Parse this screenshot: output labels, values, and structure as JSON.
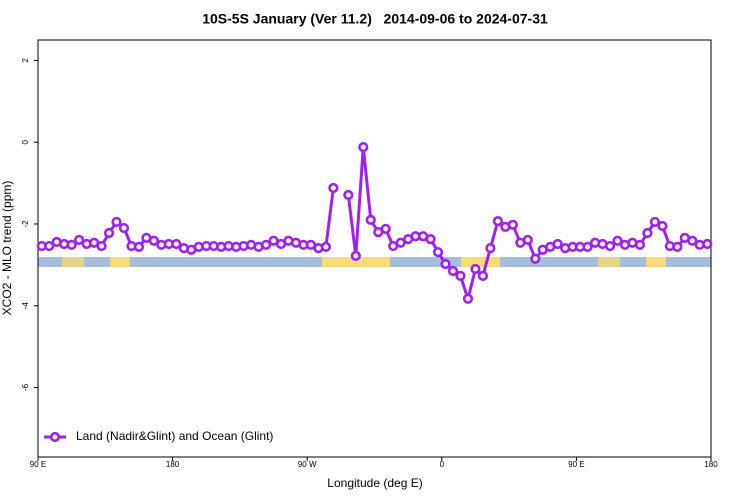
{
  "chart_data": {
    "type": "line",
    "title": "10S-5S January (Ver 11.2)   2014-09-06 to 2024-07-31",
    "x_label": "Longitude (deg E)",
    "y_label": "XCO2 - MLO trend (ppm)",
    "xlim": [
      90,
      540
    ],
    "ylim": [
      -7.7,
      2.5
    ],
    "xticks": [
      {
        "value": 90,
        "label": "90 E"
      },
      180,
      {
        "value": 270,
        "label": "90 W"
      },
      {
        "value": 360,
        "label": "0"
      },
      {
        "value": 450,
        "label": "90 E"
      },
      {
        "value": 540,
        "label": "180"
      }
    ],
    "yticks": [
      2,
      0,
      -2,
      -4,
      -6
    ],
    "legend": "bottom-left",
    "series": [
      {
        "name": "Land (Nadir&Glint) and Ocean (Glint)",
        "color": "#a020f0",
        "x": [
          92.5,
          97.5,
          102.5,
          107.5,
          112.5,
          117.5,
          122.5,
          127.5,
          132.5,
          137.5,
          142.5,
          147.5,
          152.5,
          157.5,
          162.5,
          167.5,
          172.5,
          177.5,
          182.5,
          187.5,
          192.5,
          197.5,
          202.5,
          207.5,
          212.5,
          217.5,
          222.5,
          227.5,
          232.5,
          237.5,
          242.5,
          247.5,
          252.5,
          257.5,
          262.5,
          267.5,
          272.5,
          277.5,
          282.5,
          287.5,
          292.5,
          297.5,
          302.5,
          307.5,
          312.5,
          317.5,
          322.5,
          327.5,
          332.5,
          337.5,
          342.5,
          347.5,
          352.5,
          357.5,
          362.5,
          367.5,
          372.5,
          377.5,
          382.5,
          387.5,
          392.5,
          397.5,
          402.5,
          407.5,
          412.5,
          417.5,
          422.5,
          427.5,
          432.5,
          437.5,
          442.5,
          447.5,
          452.5,
          457.5,
          462.5,
          467.5,
          472.5,
          477.5,
          482.5,
          487.5,
          492.5,
          497.5,
          502.5,
          507.5,
          512.5,
          517.5,
          522.5,
          527.5,
          532.5,
          537.5
        ],
        "values": [
          -2.54,
          -2.54,
          -2.44,
          -2.49,
          -2.51,
          -2.39,
          -2.49,
          -2.46,
          -2.54,
          -2.22,
          -1.95,
          -2.1,
          -2.54,
          -2.56,
          -2.34,
          -2.41,
          -2.51,
          -2.49,
          -2.49,
          -2.59,
          -2.63,
          -2.56,
          -2.54,
          -2.54,
          -2.56,
          -2.54,
          -2.56,
          -2.54,
          -2.51,
          -2.56,
          -2.51,
          -2.41,
          -2.49,
          -2.41,
          -2.46,
          -2.51,
          -2.51,
          -2.59,
          -2.56,
          -1.12,
          null,
          -1.29,
          -2.78,
          -0.12,
          -1.9,
          -2.2,
          -2.12,
          -2.54,
          -2.46,
          -2.37,
          -2.3,
          -2.3,
          -2.37,
          -2.69,
          -2.98,
          -3.15,
          -3.27,
          -3.83,
          -3.1,
          -3.27,
          -2.59,
          -1.93,
          -2.07,
          -2.02,
          -2.46,
          -2.39,
          -2.85,
          -2.63,
          -2.56,
          -2.49,
          -2.59,
          -2.56,
          -2.56,
          -2.56,
          -2.46,
          -2.49,
          -2.54,
          -2.41,
          -2.51,
          -2.46,
          -2.51,
          -2.22,
          -1.95,
          -2.05,
          -2.54,
          -2.56,
          -2.34,
          -2.41,
          -2.51,
          -2.49
        ]
      }
    ]
  }
}
